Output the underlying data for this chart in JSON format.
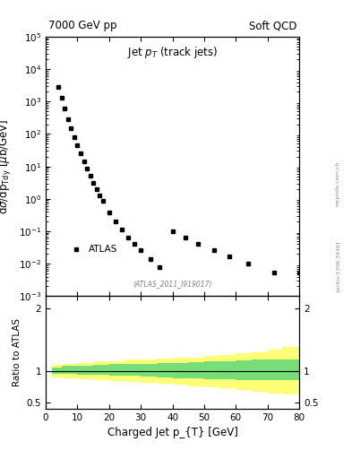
{
  "title_left": "7000 GeV pp",
  "title_right": "Soft QCD",
  "main_title": "Jet p_{T} (track jets)",
  "xlabel": "Charged Jet p_{T} [GeV]",
  "ylabel_ratio": "Ratio to ATLAS",
  "watermark": "(ATLAS_2011_I919017)",
  "arxiv_text": "[arXiv:1306.3436]",
  "mcplots_text": "mcplots.cern.ch",
  "data_x": [
    4,
    5,
    6,
    7,
    8,
    9,
    10,
    11,
    12,
    13,
    14,
    15,
    16,
    17,
    18,
    20,
    22,
    24,
    26,
    28,
    30,
    33,
    36,
    40,
    44,
    48,
    53,
    58,
    64,
    72,
    80
  ],
  "data_y": [
    2800,
    1300,
    600,
    290,
    150,
    80,
    44,
    25,
    14,
    8.5,
    5.2,
    3.2,
    2.0,
    1.3,
    0.85,
    0.38,
    0.2,
    0.11,
    0.065,
    0.04,
    0.026,
    0.014,
    0.008,
    0.1,
    0.065,
    0.042,
    0.026,
    0.017,
    0.01,
    0.0055,
    0.0055
  ],
  "xlim": [
    0,
    80
  ],
  "ylim_main": [
    0.001,
    100000.0
  ],
  "ylim_ratio": [
    0.4,
    2.2
  ],
  "ratio_yticks": [
    0.5,
    1.0,
    2.0
  ],
  "green_band_x": [
    2,
    5,
    10,
    15,
    20,
    25,
    30,
    35,
    40,
    45,
    50,
    55,
    60,
    65,
    70,
    75,
    80
  ],
  "green_band_upper": [
    1.06,
    1.08,
    1.09,
    1.1,
    1.11,
    1.12,
    1.12,
    1.13,
    1.13,
    1.14,
    1.15,
    1.16,
    1.17,
    1.18,
    1.18,
    1.18,
    1.18
  ],
  "green_band_lower": [
    0.96,
    0.95,
    0.94,
    0.94,
    0.93,
    0.92,
    0.91,
    0.9,
    0.89,
    0.88,
    0.87,
    0.87,
    0.86,
    0.86,
    0.86,
    0.86,
    0.86
  ],
  "yellow_band_x": [
    2,
    5,
    10,
    15,
    20,
    25,
    30,
    35,
    40,
    45,
    50,
    55,
    60,
    65,
    70,
    75,
    80
  ],
  "yellow_band_upper": [
    1.1,
    1.12,
    1.13,
    1.15,
    1.16,
    1.18,
    1.19,
    1.2,
    1.21,
    1.22,
    1.24,
    1.26,
    1.28,
    1.3,
    1.35,
    1.38,
    1.4
  ],
  "yellow_band_lower": [
    0.9,
    0.89,
    0.87,
    0.86,
    0.84,
    0.83,
    0.81,
    0.8,
    0.78,
    0.76,
    0.74,
    0.72,
    0.7,
    0.67,
    0.64,
    0.62,
    0.6
  ],
  "marker_color": "#000000",
  "marker_style": "s",
  "marker_size": 3.5,
  "green_color": "#77dd77",
  "yellow_color": "#ffff77",
  "ratio_line_color": "#000000",
  "background_color": "#ffffff",
  "tick_label_size": 7.5,
  "axis_label_size": 8.5,
  "title_size": 8.5
}
